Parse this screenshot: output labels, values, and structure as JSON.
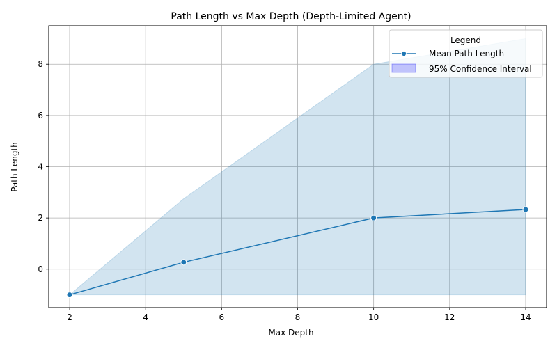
{
  "chart_data": {
    "type": "line",
    "title": "Path Length vs Max Depth (Depth-Limited Agent)",
    "xlabel": "Max Depth",
    "ylabel": "Path Length",
    "xlim": [
      1.45,
      14.55
    ],
    "ylim": [
      -1.5,
      9.5
    ],
    "xticks": [
      2,
      4,
      6,
      8,
      10,
      12,
      14
    ],
    "yticks": [
      0,
      2,
      4,
      6,
      8
    ],
    "grid": true,
    "legend": {
      "title": "Legend",
      "placement": "top-right",
      "entries": [
        "Mean Path Length",
        "95% Confidence Interval"
      ]
    },
    "series": [
      {
        "name": "Mean Path Length",
        "x": [
          2,
          5,
          10,
          14
        ],
        "y": [
          -1.0,
          0.27,
          2.0,
          2.33
        ],
        "color": "#1f77b4",
        "marker": "circle"
      }
    ],
    "confidence_interval": {
      "name": "95% Confidence Interval",
      "x": [
        2,
        5,
        10,
        14
      ],
      "lower": [
        -1.0,
        -1.0,
        -1.0,
        -1.0
      ],
      "upper": [
        -1.0,
        2.75,
        8.0,
        9.0
      ],
      "fill_color": "#1f77b4",
      "legend_color": "#0000ff"
    }
  }
}
